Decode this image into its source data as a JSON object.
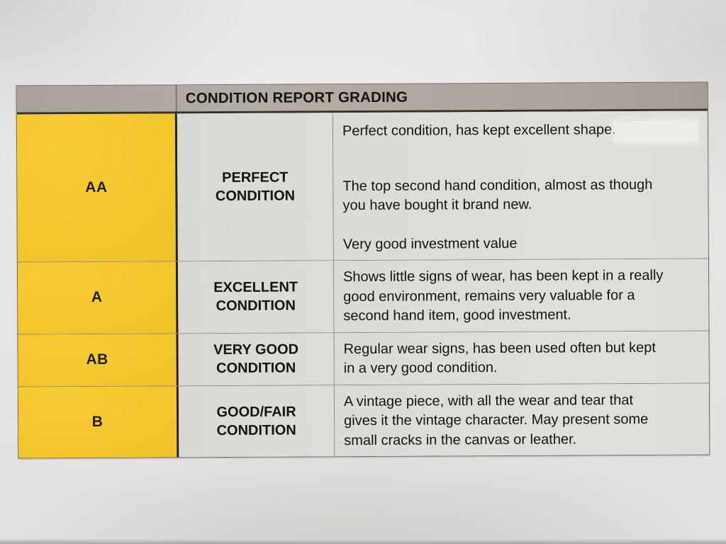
{
  "colors": {
    "paper": "#e4e2e0",
    "header_bar_gray": "#aca69d",
    "grade_column_yellow": "#f2c62c",
    "cell_background": "#dedcd8",
    "ink": "#16140f"
  },
  "table": {
    "title": "CONDITION REPORT GRADING",
    "rows": [
      {
        "grade": "AA",
        "condition": "PERFECT\nCONDITION",
        "description": [
          "Perfect condition, has kept excellent shape.",
          "The top second hand condition, almost as though\nyou have bought it brand new.",
          "Very good investment value"
        ]
      },
      {
        "grade": "A",
        "condition": "EXCELLENT\nCONDITION",
        "description": [
          "Shows little signs of wear, has been kept in a really\ngood environment, remains very valuable for a\nsecond hand item, good investment."
        ]
      },
      {
        "grade": "AB",
        "condition": "VERY GOOD\nCONDITION",
        "description": [
          "Regular wear signs, has been used often but kept\nin a very good condition."
        ]
      },
      {
        "grade": "B",
        "condition": "GOOD/FAIR\nCONDITION",
        "description": [
          "A vintage piece, with all the wear and tear that\ngives it the vintage character. May present some\nsmall cracks in the canvas or leather."
        ]
      }
    ]
  }
}
